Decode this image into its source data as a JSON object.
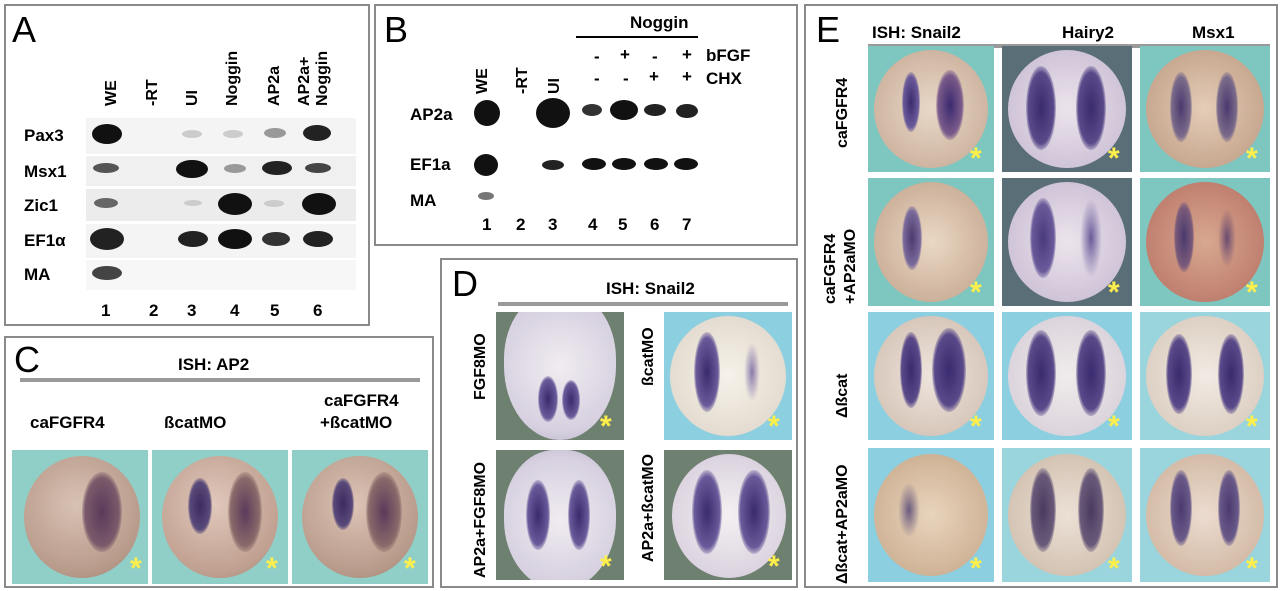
{
  "panelA": {
    "label": "A",
    "lanes": [
      "WE",
      "-RT",
      "UI",
      "Noggin",
      "AP2a",
      "AP2a+ Noggin"
    ],
    "rows": [
      "Pax3",
      "Msx1",
      "Zic1",
      "EF1α",
      "MA"
    ],
    "numbers": [
      "1",
      "2",
      "3",
      "4",
      "5",
      "6"
    ]
  },
  "panelB": {
    "label": "B",
    "header": "Noggin",
    "bfgf_label": "bFGF",
    "chx_label": "CHX",
    "bfgf_signs": [
      "-",
      "+",
      "-",
      "+"
    ],
    "chx_signs": [
      "-",
      "-",
      "+",
      "+"
    ],
    "lanes": [
      "WE",
      "-RT",
      "UI"
    ],
    "rows": [
      "AP2a",
      "EF1a",
      "MA"
    ],
    "numbers": [
      "1",
      "2",
      "3",
      "4",
      "5",
      "6",
      "7"
    ]
  },
  "panelC": {
    "label": "C",
    "title": "ISH: AP2",
    "cols": [
      "caFGFR4",
      "ßcatMO",
      "caFGFR4\n+ßcatMO"
    ],
    "col3_line1": "caFGFR4",
    "col3_line2": "+ßcatMO"
  },
  "panelD": {
    "label": "D",
    "title": "ISH: Snail2",
    "labels": [
      "FGF8MO",
      "ßcatMO",
      "AP2a+FGF8MO",
      "AP2a+ßcatMO"
    ]
  },
  "panelE": {
    "label": "E",
    "cols": [
      "ISH: Snail2",
      "Hairy2",
      "Msx1"
    ],
    "rows": [
      "caFGFR4",
      "caFGFR4 +AP2aMO",
      "Δßcat",
      "Δßcat+AP2aMO"
    ],
    "row2_line1": "caFGFR4",
    "row2_line2": "+AP2aMO"
  },
  "star": "*",
  "colors": {
    "panel_border": "#8a8a8a",
    "star": "#ffef4a",
    "stain": "#3a2a6e",
    "bg_teal": "#7fc9c4",
    "bg_grey": "#5f6f62"
  }
}
